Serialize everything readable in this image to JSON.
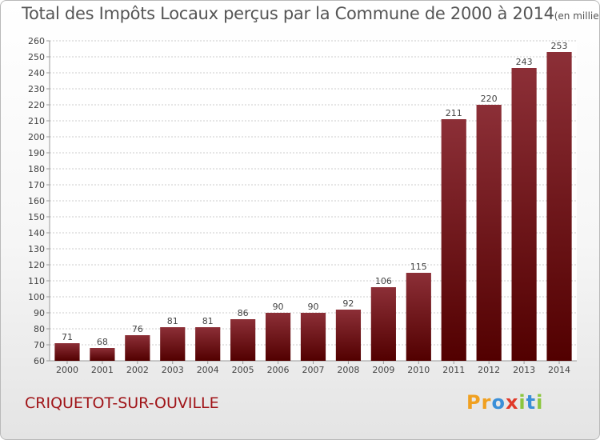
{
  "chart_data": {
    "type": "bar",
    "title": "Total des Impôts Locaux perçus par la Commune de 2000 à 2014",
    "unit": "(en milliers d'€)",
    "categories": [
      "2000",
      "2001",
      "2002",
      "2003",
      "2004",
      "2005",
      "2006",
      "2007",
      "2008",
      "2009",
      "2010",
      "2011",
      "2012",
      "2013",
      "2014"
    ],
    "values": [
      71,
      68,
      76,
      81,
      81,
      86,
      90,
      90,
      92,
      106,
      115,
      211,
      220,
      243,
      253
    ],
    "ylim": [
      60,
      260
    ],
    "ytick_step": 10,
    "grid": true,
    "xlabel": "",
    "ylabel": "",
    "colors": {
      "bar_top": "#8c2f37",
      "bar_bottom": "#520000",
      "grid": "#cccccc"
    }
  },
  "footer": {
    "commune": "CRIQUETOT-SUR-OUVILLE",
    "brand_letters": [
      "P",
      "r",
      "o",
      "x",
      "i",
      "t",
      "i"
    ],
    "brand_colors": [
      "#f0a020",
      "#f0a020",
      "#3a8fd8",
      "#e03a2a",
      "#8cc63e",
      "#3a8fd8",
      "#8cc63e"
    ]
  }
}
